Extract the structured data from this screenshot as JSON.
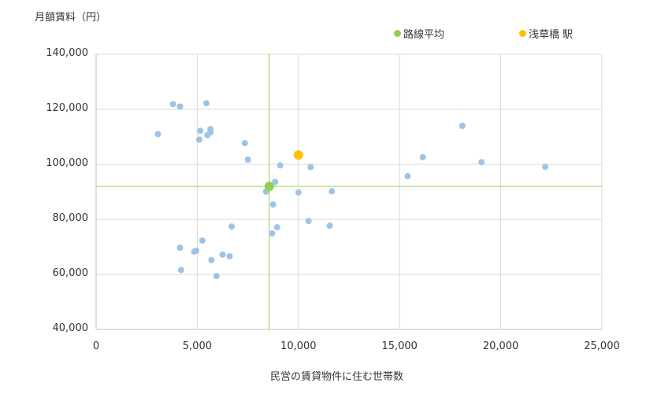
{
  "chart_data": {
    "type": "scatter",
    "title": "",
    "xlabel": "民営の賃貸物件に住む世帯数",
    "ylabel": "月額賃料（円）",
    "xlim": [
      0,
      25000
    ],
    "ylim": [
      40000,
      140000
    ],
    "x_ticks": [
      "0",
      "5,000",
      "10,000",
      "15,000",
      "20,000",
      "25,000"
    ],
    "y_ticks": [
      "140,000",
      "120,000",
      "100,000",
      "80,000",
      "60,000",
      "40,000"
    ],
    "grid": true,
    "legend_position": "top-right",
    "legend": [
      {
        "name": "路線平均",
        "color": "#92D050"
      },
      {
        "name": "浅草橋 駅",
        "color": "#FFC000"
      }
    ],
    "series": [
      {
        "name": "駅",
        "color": "#9DC3E6",
        "points": [
          [
            3800,
            121900
          ],
          [
            4150,
            121000
          ],
          [
            5450,
            122200
          ],
          [
            3050,
            111000
          ],
          [
            5150,
            112200
          ],
          [
            5100,
            109000
          ],
          [
            5650,
            112800
          ],
          [
            5650,
            111600
          ],
          [
            5500,
            110600
          ],
          [
            7350,
            107700
          ],
          [
            7500,
            101700
          ],
          [
            9100,
            99600
          ],
          [
            8850,
            93600
          ],
          [
            8400,
            90100
          ],
          [
            8750,
            85400
          ],
          [
            10600,
            99000
          ],
          [
            10000,
            89800
          ],
          [
            11650,
            90200
          ],
          [
            15400,
            95700
          ],
          [
            16150,
            102600
          ],
          [
            18100,
            114000
          ],
          [
            19050,
            100800
          ],
          [
            22200,
            99100
          ],
          [
            4150,
            69700
          ],
          [
            5250,
            72300
          ],
          [
            4950,
            68600
          ],
          [
            4850,
            68300
          ],
          [
            6700,
            77400
          ],
          [
            6250,
            67200
          ],
          [
            5700,
            65200
          ],
          [
            6600,
            66600
          ],
          [
            4200,
            61600
          ],
          [
            5950,
            59400
          ],
          [
            8950,
            77100
          ],
          [
            8700,
            74900
          ],
          [
            10500,
            79400
          ],
          [
            11550,
            77700
          ]
        ]
      },
      {
        "name": "路線平均",
        "color": "#92D050",
        "points": [
          [
            8560,
            92000
          ]
        ]
      },
      {
        "name": "浅草橋 駅",
        "color": "#FFC000",
        "points": [
          [
            10000,
            103400
          ]
        ]
      }
    ],
    "reference_lines": {
      "x": 8560,
      "y": 92000,
      "color": "#92D050"
    }
  },
  "labels": {
    "ylabel": "月額賃料（円）",
    "xlabel": "民営の賃貸物件に住む世帯数",
    "legend_avg": "路線平均",
    "legend_station": "浅草橋 駅"
  }
}
